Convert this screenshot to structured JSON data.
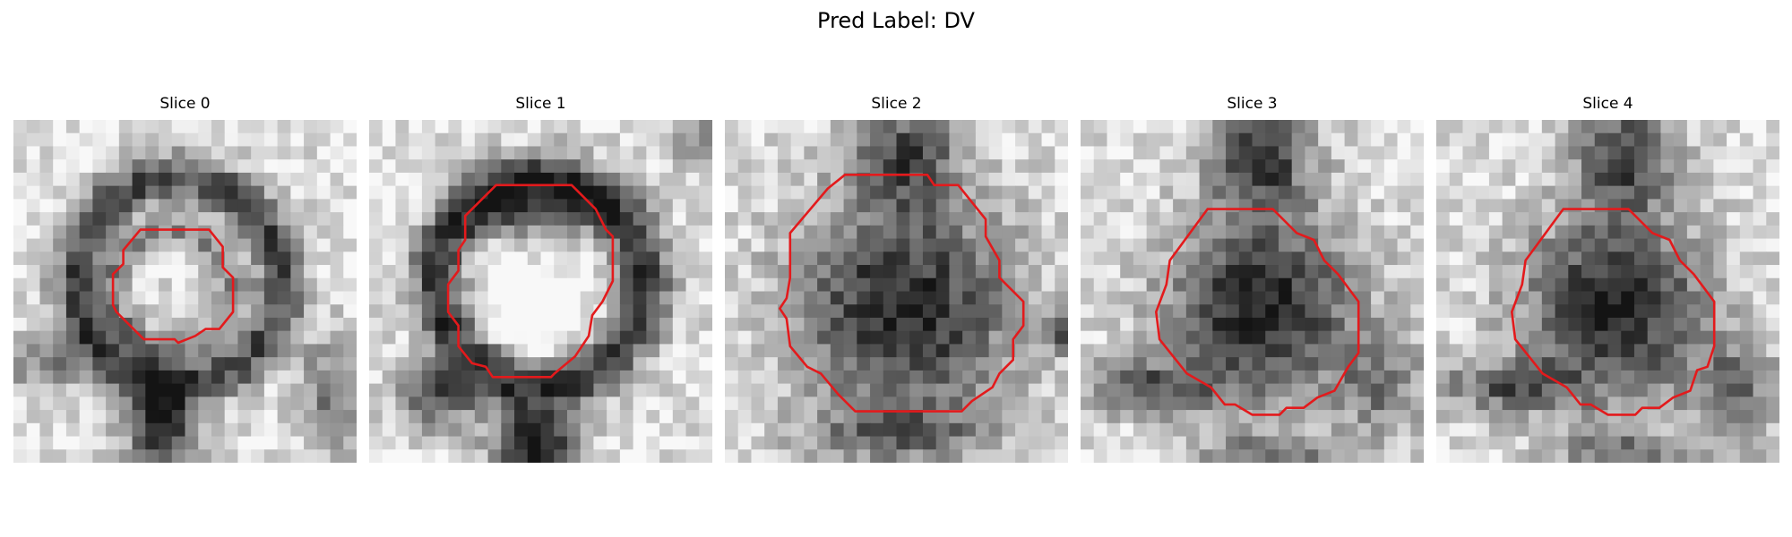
{
  "figure": {
    "title": "Pred Label: DV",
    "contour_color": "#e31a1c"
  },
  "slices": [
    {
      "title": "Slice 0"
    },
    {
      "title": "Slice 1"
    },
    {
      "title": "Slice 2"
    },
    {
      "title": "Slice 3"
    },
    {
      "title": "Slice 4"
    }
  ]
}
